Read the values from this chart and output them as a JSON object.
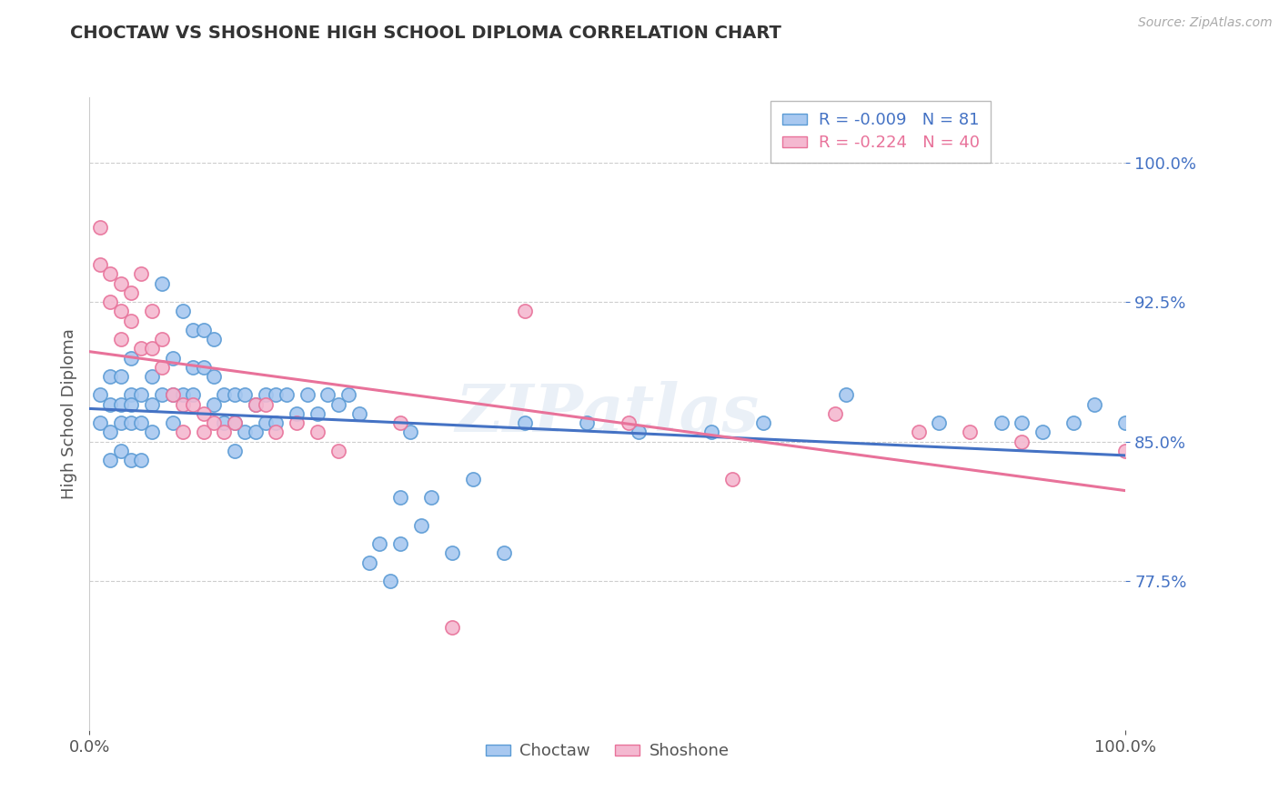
{
  "title": "CHOCTAW VS SHOSHONE HIGH SCHOOL DIPLOMA CORRELATION CHART",
  "source": "Source: ZipAtlas.com",
  "ylabel": "High School Diploma",
  "watermark": "ZIPatlas",
  "xlim": [
    0.0,
    1.0
  ],
  "ylim": [
    0.695,
    1.035
  ],
  "yticks": [
    0.775,
    0.85,
    0.925,
    1.0
  ],
  "ytick_labels": [
    "77.5%",
    "85.0%",
    "92.5%",
    "100.0%"
  ],
  "xtick_labels": [
    "0.0%",
    "100.0%"
  ],
  "xticks": [
    0.0,
    1.0
  ],
  "choctaw_color": "#A8C8F0",
  "shoshone_color": "#F4B8D0",
  "choctaw_edge_color": "#5B9BD5",
  "shoshone_edge_color": "#E8729A",
  "choctaw_line_color": "#4472C4",
  "shoshone_line_color": "#E8729A",
  "choctaw_r": -0.009,
  "choctaw_n": 81,
  "shoshone_r": -0.224,
  "shoshone_n": 40,
  "background_color": "#FFFFFF",
  "grid_color": "#C8C8C8",
  "title_color": "#333333",
  "label_color": "#555555",
  "choctaw_x": [
    0.01,
    0.01,
    0.02,
    0.02,
    0.02,
    0.02,
    0.03,
    0.03,
    0.03,
    0.03,
    0.04,
    0.04,
    0.04,
    0.04,
    0.04,
    0.05,
    0.05,
    0.05,
    0.06,
    0.06,
    0.06,
    0.07,
    0.07,
    0.08,
    0.08,
    0.08,
    0.09,
    0.09,
    0.1,
    0.1,
    0.1,
    0.11,
    0.11,
    0.12,
    0.12,
    0.12,
    0.13,
    0.13,
    0.14,
    0.14,
    0.14,
    0.15,
    0.15,
    0.16,
    0.16,
    0.17,
    0.17,
    0.18,
    0.18,
    0.19,
    0.2,
    0.21,
    0.22,
    0.23,
    0.24,
    0.25,
    0.26,
    0.27,
    0.28,
    0.29,
    0.3,
    0.3,
    0.31,
    0.32,
    0.33,
    0.35,
    0.37,
    0.4,
    0.42,
    0.48,
    0.53,
    0.6,
    0.65,
    0.73,
    0.82,
    0.88,
    0.9,
    0.92,
    0.95,
    0.97,
    1.0
  ],
  "choctaw_y": [
    0.875,
    0.86,
    0.885,
    0.87,
    0.855,
    0.84,
    0.87,
    0.885,
    0.86,
    0.845,
    0.895,
    0.875,
    0.86,
    0.84,
    0.87,
    0.875,
    0.86,
    0.84,
    0.87,
    0.885,
    0.855,
    0.935,
    0.875,
    0.895,
    0.875,
    0.86,
    0.92,
    0.875,
    0.91,
    0.89,
    0.875,
    0.91,
    0.89,
    0.885,
    0.87,
    0.905,
    0.875,
    0.86,
    0.875,
    0.86,
    0.845,
    0.875,
    0.855,
    0.87,
    0.855,
    0.875,
    0.86,
    0.875,
    0.86,
    0.875,
    0.865,
    0.875,
    0.865,
    0.875,
    0.87,
    0.875,
    0.865,
    0.785,
    0.795,
    0.775,
    0.82,
    0.795,
    0.855,
    0.805,
    0.82,
    0.79,
    0.83,
    0.79,
    0.86,
    0.86,
    0.855,
    0.855,
    0.86,
    0.875,
    0.86,
    0.86,
    0.86,
    0.855,
    0.86,
    0.87,
    0.86
  ],
  "shoshone_x": [
    0.01,
    0.01,
    0.02,
    0.02,
    0.03,
    0.03,
    0.03,
    0.04,
    0.04,
    0.05,
    0.05,
    0.06,
    0.06,
    0.07,
    0.07,
    0.08,
    0.09,
    0.09,
    0.1,
    0.11,
    0.11,
    0.12,
    0.13,
    0.14,
    0.16,
    0.17,
    0.18,
    0.2,
    0.22,
    0.24,
    0.3,
    0.35,
    0.42,
    0.52,
    0.62,
    0.72,
    0.8,
    0.85,
    0.9,
    1.0
  ],
  "shoshone_y": [
    0.965,
    0.945,
    0.94,
    0.925,
    0.935,
    0.92,
    0.905,
    0.93,
    0.915,
    0.94,
    0.9,
    0.92,
    0.9,
    0.905,
    0.89,
    0.875,
    0.87,
    0.855,
    0.87,
    0.865,
    0.855,
    0.86,
    0.855,
    0.86,
    0.87,
    0.87,
    0.855,
    0.86,
    0.855,
    0.845,
    0.86,
    0.75,
    0.92,
    0.86,
    0.83,
    0.865,
    0.855,
    0.855,
    0.85,
    0.845
  ]
}
